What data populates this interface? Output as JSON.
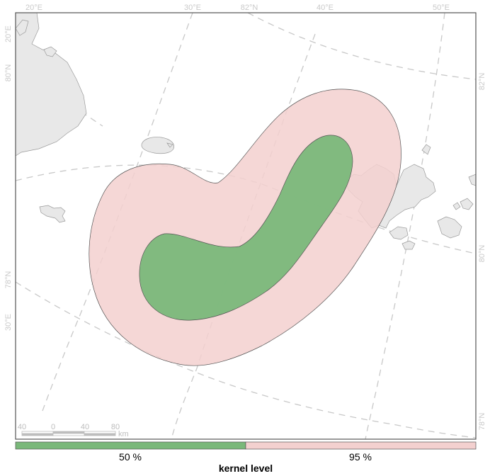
{
  "map": {
    "colors": {
      "kernel_50": "#7ab87a",
      "kernel_95": "#f3d0cf",
      "land": "#e8e8e8",
      "graticule": "#c8c8c8",
      "frame": "#555555"
    },
    "top_labels": [
      "20°E",
      "30°E",
      "82°N",
      "40°E",
      "50°E"
    ],
    "left_labels": [
      "20°E",
      "80°N",
      "78°N",
      "30°E"
    ],
    "right_labels": [
      "82°N",
      "80°N",
      "78°N"
    ],
    "scale_bar": {
      "ticks": [
        "40",
        "0",
        "40",
        "80"
      ],
      "unit": "km"
    }
  },
  "legend": {
    "title": "kernel level",
    "items": [
      {
        "label": "50 %",
        "color": "#7ab87a"
      },
      {
        "label": "95 %",
        "color": "#f3d0cf"
      }
    ]
  }
}
